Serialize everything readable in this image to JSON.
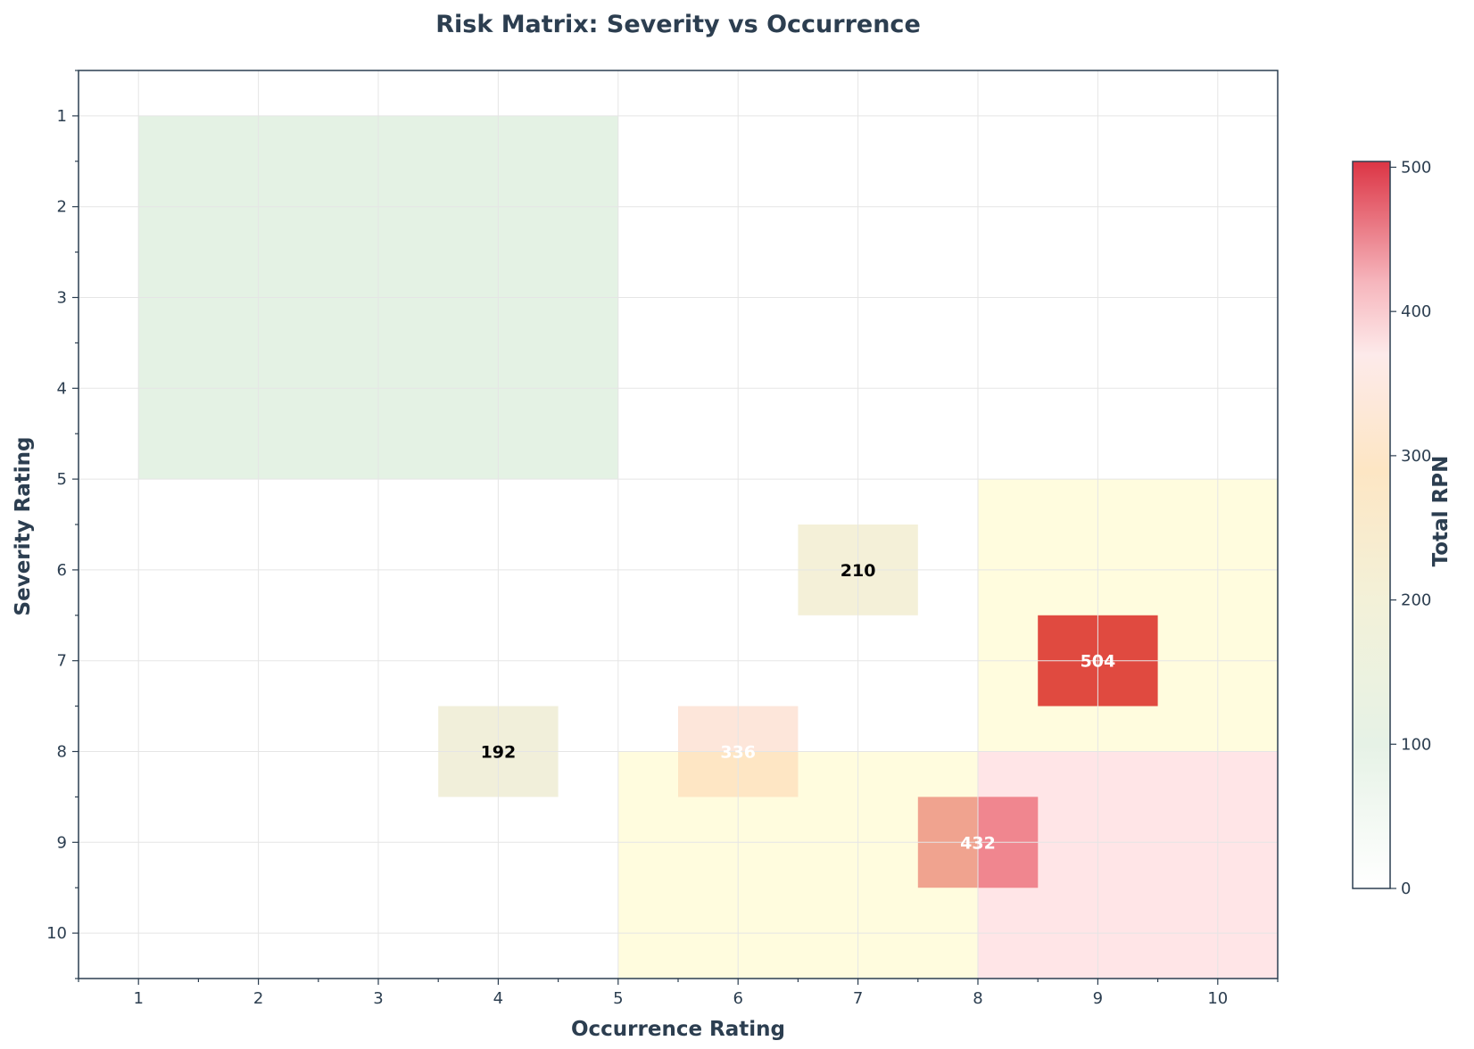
{
  "chart_data": {
    "type": "heatmap",
    "title": "Risk Matrix: Severity vs Occurrence",
    "xlabel": "Occurrence Rating",
    "ylabel": "Severity Rating",
    "xlim": [
      0.5,
      10.5
    ],
    "ylim": [
      0.5,
      10.5
    ],
    "y_inverted": true,
    "x_ticks": [
      "1",
      "2",
      "3",
      "4",
      "5",
      "6",
      "7",
      "8",
      "9",
      "10"
    ],
    "y_ticks": [
      "1",
      "2",
      "3",
      "4",
      "5",
      "6",
      "7",
      "8",
      "9",
      "10"
    ],
    "grid": true,
    "zones": [
      {
        "occurrence_range": [
          1,
          5
        ],
        "severity_range": [
          1,
          5
        ],
        "color": "#d8ecd8"
      },
      {
        "occurrence_range": [
          8,
          10.5
        ],
        "severity_range": [
          5,
          8
        ],
        "color": "#fffbd0"
      },
      {
        "occurrence_range": [
          5,
          8
        ],
        "severity_range": [
          8,
          10.5
        ],
        "color": "#fffbd0"
      },
      {
        "occurrence_range": [
          8,
          10.5
        ],
        "severity_range": [
          8,
          10.5
        ],
        "color": "#ffdadd"
      }
    ],
    "cells": [
      {
        "occurrence": 7,
        "severity": 6,
        "rpn": 210,
        "label": "210",
        "fill": "#f4f0d8",
        "text_color": "#000000"
      },
      {
        "occurrence": 9,
        "severity": 7,
        "rpn": 504,
        "label": "504",
        "fill": "#e04a40",
        "text_color": "#ffffff"
      },
      {
        "occurrence": 4,
        "severity": 8,
        "rpn": 192,
        "label": "192",
        "fill": "#f1efda",
        "text_color": "#000000"
      },
      {
        "occurrence": 6,
        "severity": 8,
        "rpn": 336,
        "label": "336",
        "fill": "#fde6da",
        "fill_lower": "#fee6c4",
        "text_color": "#ffffff"
      },
      {
        "occurrence": 8,
        "severity": 9,
        "rpn": 432,
        "label": "432",
        "fill": "#f0a38f",
        "fill_right": "#f0868f",
        "text_color": "#ffffff"
      }
    ],
    "colorbar": {
      "label": "Total RPN",
      "range": [
        0,
        504
      ],
      "ticks": [
        "0",
        "100",
        "200",
        "300",
        "400",
        "500"
      ],
      "stops": [
        {
          "value": 0,
          "color": "#ffffff"
        },
        {
          "value": 100,
          "color": "#e6f2e6"
        },
        {
          "value": 200,
          "color": "#f3f1d8"
        },
        {
          "value": 290,
          "color": "#fde6c4"
        },
        {
          "value": 370,
          "color": "#fdeaea"
        },
        {
          "value": 420,
          "color": "#f6b6bd"
        },
        {
          "value": 504,
          "color": "#dc3545"
        }
      ]
    },
    "text_color": "#2c3e50"
  }
}
